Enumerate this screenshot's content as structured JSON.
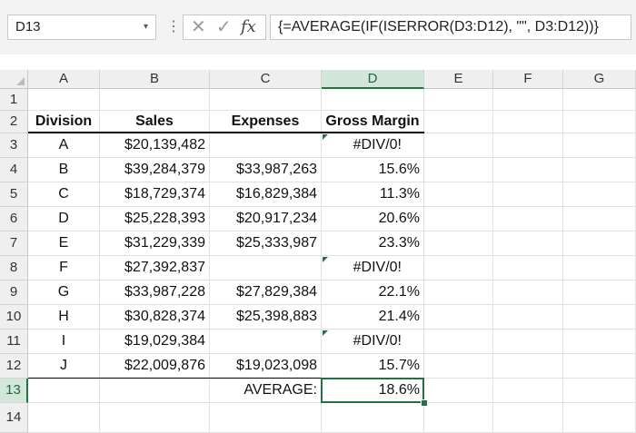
{
  "formula_bar": {
    "name_box": "D13",
    "name_box_arrow": "▾",
    "more_icon": "⋮",
    "cancel_icon": "✕",
    "enter_icon": "✓",
    "fx_icon": "fx",
    "formula": "{=AVERAGE(IF(ISERROR(D3:D12), \"\", D3:D12))}"
  },
  "columns": [
    "A",
    "B",
    "C",
    "D",
    "E",
    "F",
    "G"
  ],
  "rows": [
    "1",
    "2",
    "3",
    "4",
    "5",
    "6",
    "7",
    "8",
    "9",
    "10",
    "11",
    "12",
    "13",
    "14"
  ],
  "selected": {
    "column": "D",
    "row": "13"
  },
  "headers": {
    "a": "Division",
    "b": "Sales",
    "c": "Expenses",
    "d": "Gross Margin"
  },
  "table": [
    {
      "a": "A",
      "b": "$20,139,482",
      "c": "",
      "d": "#DIV/0!",
      "error": true
    },
    {
      "a": "B",
      "b": "$39,284,379",
      "c": "$33,987,263",
      "d": "15.6%",
      "error": false
    },
    {
      "a": "C",
      "b": "$18,729,374",
      "c": "$16,829,384",
      "d": "11.3%",
      "error": false
    },
    {
      "a": "D",
      "b": "$25,228,393",
      "c": "$20,917,234",
      "d": "20.6%",
      "error": false
    },
    {
      "a": "E",
      "b": "$31,229,339",
      "c": "$25,333,987",
      "d": "23.3%",
      "error": false
    },
    {
      "a": "F",
      "b": "$27,392,837",
      "c": "",
      "d": "#DIV/0!",
      "error": true
    },
    {
      "a": "G",
      "b": "$33,987,228",
      "c": "$27,829,384",
      "d": "22.1%",
      "error": false
    },
    {
      "a": "H",
      "b": "$30,828,374",
      "c": "$25,398,883",
      "d": "21.4%",
      "error": false
    },
    {
      "a": "I",
      "b": "$19,029,384",
      "c": "",
      "d": "#DIV/0!",
      "error": true
    },
    {
      "a": "J",
      "b": "$22,009,876",
      "c": "$19,023,098",
      "d": "15.7%",
      "error": false
    }
  ],
  "summary": {
    "label": "AVERAGE:",
    "value": "18.6%"
  },
  "colors": {
    "accent": "#217346",
    "header_bg": "#efefef",
    "selected_header_bg": "#d3e6da"
  }
}
